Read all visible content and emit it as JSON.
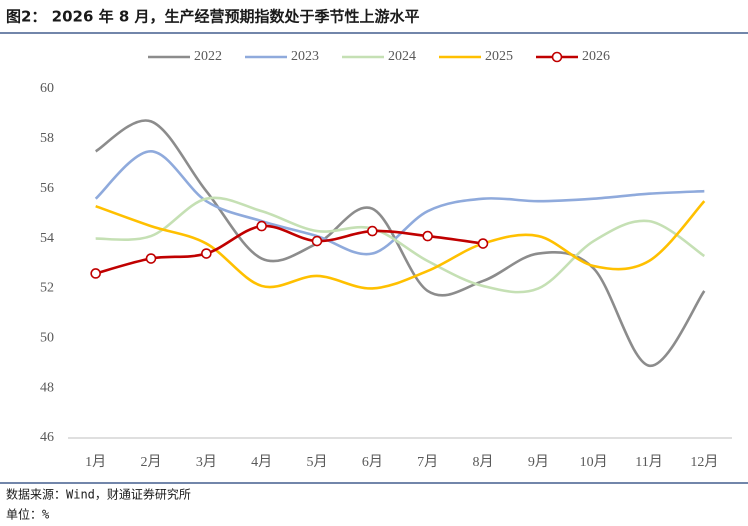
{
  "chart_data": {
    "type": "line",
    "title": "图2： 2026 年 8 月，生产经营预期指数处于季节性上游水平",
    "source": "数据来源：Wind，财通证券研究所",
    "unit": "单位：%",
    "categories": [
      "1月",
      "2月",
      "3月",
      "4月",
      "5月",
      "6月",
      "7月",
      "8月",
      "9月",
      "10月",
      "11月",
      "12月"
    ],
    "ylim": [
      46,
      60
    ],
    "yticks": [
      46,
      48,
      50,
      52,
      54,
      56,
      58,
      60
    ],
    "grid": false,
    "smooth": true,
    "legend": "top",
    "series": [
      {
        "name": "2022",
        "color": "#8c8c8c",
        "values": [
          57.5,
          58.7,
          55.9,
          53.2,
          53.8,
          55.2,
          51.9,
          52.3,
          53.4,
          52.8,
          48.9,
          51.9
        ]
      },
      {
        "name": "2023",
        "color": "#8faadc",
        "values": [
          55.6,
          57.5,
          55.5,
          54.7,
          54.1,
          53.4,
          55.1,
          55.6,
          55.5,
          55.6,
          55.8,
          55.9
        ]
      },
      {
        "name": "2024",
        "color": "#c5e0b4",
        "values": [
          54.0,
          54.1,
          55.6,
          55.1,
          54.3,
          54.4,
          53.1,
          52.1,
          52.0,
          53.9,
          54.7,
          53.3
        ]
      },
      {
        "name": "2025",
        "color": "#ffc000",
        "values": [
          55.3,
          54.5,
          53.8,
          52.1,
          52.5,
          52.0,
          52.7,
          53.8,
          54.1,
          52.9,
          53.1,
          55.5
        ]
      },
      {
        "name": "2026",
        "color": "#c00000",
        "markers": true,
        "values": [
          52.6,
          53.2,
          53.4,
          54.5,
          53.9,
          54.3,
          54.1,
          53.8,
          null,
          null,
          null,
          null
        ]
      }
    ]
  }
}
